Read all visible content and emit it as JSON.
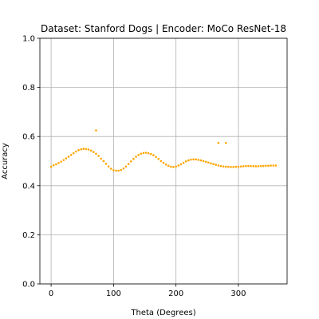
{
  "chart_data": {
    "type": "scatter",
    "title": "Dataset: Stanford Dogs | Encoder: MoCo ResNet-18",
    "xlabel": "Theta (Degrees)",
    "ylabel": "Accuracy",
    "xlim": [
      -18,
      378
    ],
    "ylim": [
      0,
      1
    ],
    "xticks": [
      0,
      100,
      200,
      300
    ],
    "yticks": [
      0.0,
      0.2,
      0.4,
      0.6,
      0.8,
      1.0
    ],
    "xtick_labels": [
      "0",
      "100",
      "200",
      "300"
    ],
    "ytick_labels": [
      "0.0",
      "0.2",
      "0.4",
      "0.6",
      "0.8",
      "1.0"
    ],
    "grid": true,
    "marker_color": "#ffa500",
    "series": [
      {
        "x": [
          0,
          4,
          8,
          12,
          16,
          20,
          24,
          28,
          32,
          36,
          40,
          44,
          48,
          52,
          56,
          60,
          64,
          68,
          72,
          76,
          80,
          84,
          88,
          92,
          96,
          100,
          104,
          108,
          112,
          116,
          120,
          124,
          128,
          132,
          136,
          140,
          144,
          148,
          152,
          156,
          160,
          164,
          168,
          172,
          176,
          180,
          184,
          188,
          192,
          196,
          200,
          204,
          208,
          212,
          216,
          220,
          224,
          228,
          232,
          236,
          240,
          244,
          248,
          252,
          256,
          260,
          264,
          268,
          272,
          276,
          280,
          284,
          288,
          292,
          296,
          300,
          304,
          308,
          312,
          316,
          320,
          324,
          328,
          332,
          336,
          340,
          344,
          348,
          352,
          356,
          360,
          72,
          268,
          280
        ],
        "y": [
          0.477,
          0.483,
          0.487,
          0.492,
          0.498,
          0.504,
          0.511,
          0.518,
          0.525,
          0.532,
          0.539,
          0.545,
          0.548,
          0.55,
          0.549,
          0.547,
          0.543,
          0.537,
          0.53,
          0.521,
          0.51,
          0.5,
          0.489,
          0.478,
          0.469,
          0.463,
          0.461,
          0.461,
          0.464,
          0.47,
          0.478,
          0.488,
          0.499,
          0.509,
          0.518,
          0.525,
          0.53,
          0.533,
          0.534,
          0.532,
          0.529,
          0.524,
          0.517,
          0.509,
          0.5,
          0.493,
          0.486,
          0.481,
          0.477,
          0.476,
          0.478,
          0.482,
          0.487,
          0.493,
          0.499,
          0.503,
          0.506,
          0.507,
          0.507,
          0.505,
          0.503,
          0.5,
          0.497,
          0.494,
          0.491,
          0.488,
          0.485,
          0.482,
          0.48,
          0.478,
          0.477,
          0.477,
          0.476,
          0.476,
          0.477,
          0.477,
          0.478,
          0.479,
          0.48,
          0.48,
          0.48,
          0.479,
          0.479,
          0.479,
          0.48,
          0.48,
          0.481,
          0.481,
          0.482,
          0.482,
          0.482,
          0.625,
          0.574,
          0.574
        ]
      }
    ]
  }
}
